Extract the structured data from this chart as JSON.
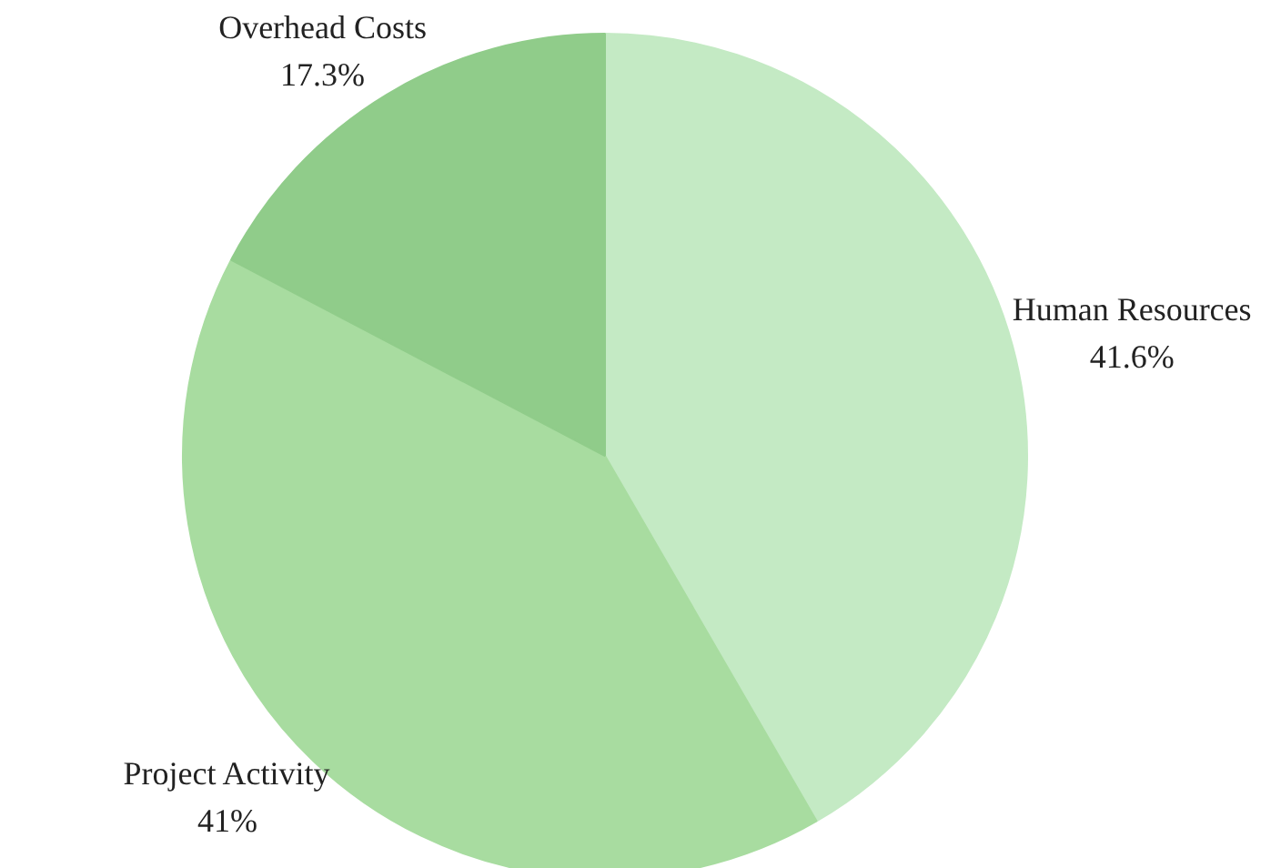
{
  "chart_data": {
    "type": "pie",
    "categories": [
      "Human Resources",
      "Project Activity",
      "Overhead Costs"
    ],
    "values": [
      41.6,
      41,
      17.3
    ],
    "colors": [
      "#c4eac4",
      "#a8dca0",
      "#90cc8a"
    ],
    "value_labels": [
      "41.6%",
      "41%",
      "17.3%"
    ]
  }
}
